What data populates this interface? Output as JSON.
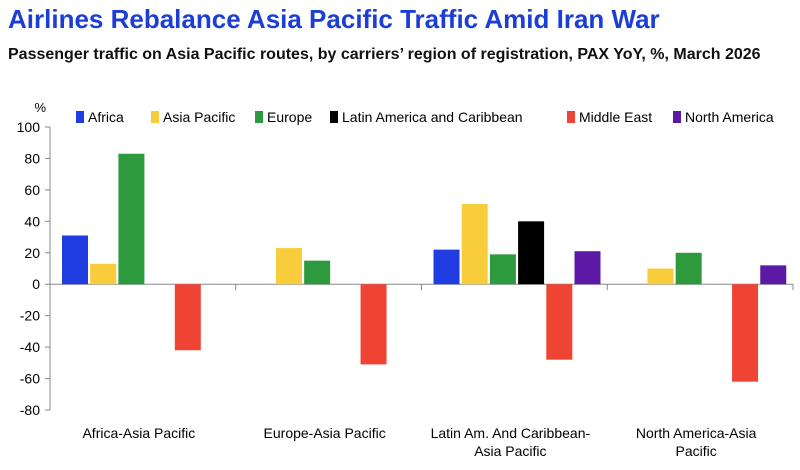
{
  "title": "Airlines Rebalance Asia Pacific Traffic Amid Iran War",
  "subtitle": "Passenger traffic on Asia Pacific routes, by carriers’ region of registration, PAX YoY, %, March 2026",
  "chart_data": {
    "type": "bar",
    "ylabel": "%",
    "ylim": [
      -80,
      100
    ],
    "yticks": [
      100,
      80,
      60,
      40,
      20,
      0,
      -20,
      -40,
      -60,
      -80
    ],
    "grid": false,
    "legend_position": "top",
    "categories": [
      [
        "Africa-Asia Pacific"
      ],
      [
        "Europe-Asia Pacific"
      ],
      [
        "Latin Am. And Caribbean-",
        "Asia Pacific"
      ],
      [
        "North America-Asia",
        "Pacific"
      ]
    ],
    "series": [
      {
        "name": "Africa",
        "color": "#1f3de0",
        "values": [
          31,
          null,
          22,
          null
        ]
      },
      {
        "name": "Asia Pacific",
        "color": "#f8cc3a",
        "values": [
          13,
          23,
          51,
          10
        ]
      },
      {
        "name": "Europe",
        "color": "#2d9a3e",
        "values": [
          83,
          15,
          19,
          20
        ]
      },
      {
        "name": "Latin America and Caribbean",
        "color": "#000000",
        "values": [
          null,
          null,
          40,
          null
        ]
      },
      {
        "name": "Middle East",
        "color": "#ef4433",
        "values": [
          -42,
          -51,
          -48,
          -62
        ]
      },
      {
        "name": "North America",
        "color": "#5b19a6",
        "values": [
          null,
          null,
          21,
          12
        ]
      }
    ]
  }
}
